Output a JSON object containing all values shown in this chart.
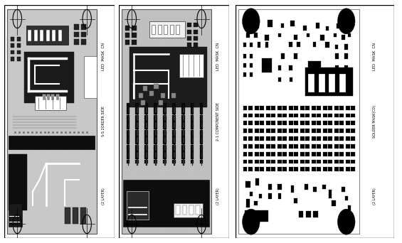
{
  "bg_color": "#ffffff",
  "pcb_gray": "#c8c8c8",
  "pcb_dark": "#1a1a1a",
  "grid_color": "#aaaaaa",
  "trace_white": "#ffffff",
  "border_color": "#000000",
  "pad_dark": "#2a2a2a",
  "figsize": [
    5.65,
    3.42
  ],
  "dpi": 100,
  "panel_labels": {
    "p1_top": "LED  MASK  CN",
    "p1_mid": "S-S 2ORDER SIDE",
    "p1_bot": "(2 LAYER)",
    "p2_top": "LED  MASK  CN",
    "p2_mid": "2-1 COMPONENT SIDE",
    "p2_bot": "(2 LAYER)",
    "p3_top": "LED  MASK  CN",
    "p3_mid": "SOLDER MASK(CO)",
    "p3_bot": "(2 LAYER)"
  }
}
